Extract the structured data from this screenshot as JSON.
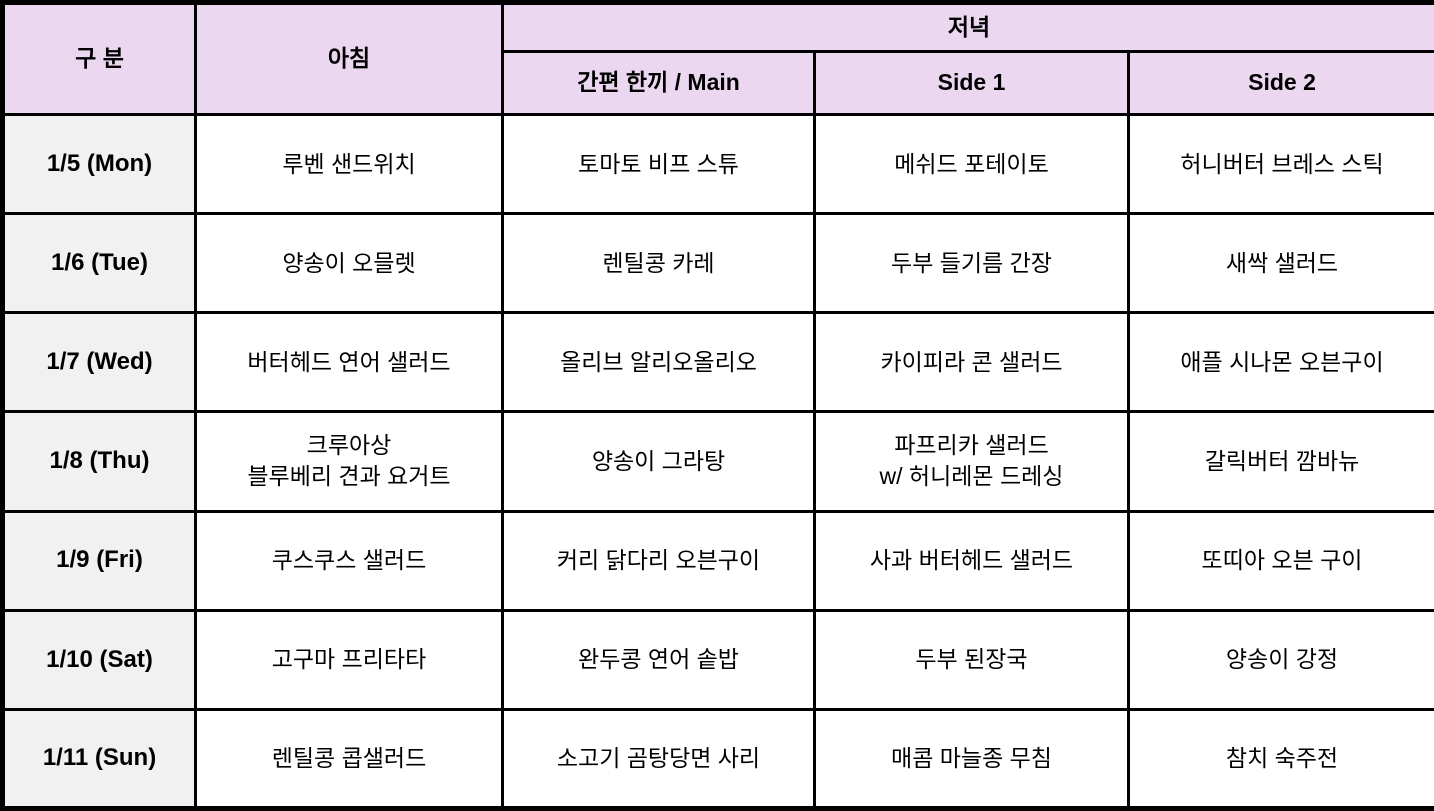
{
  "table": {
    "headers": {
      "category": "구 분",
      "breakfast": "아침",
      "dinner": "저녁",
      "dinner_main": "간편 한끼 / Main",
      "dinner_side1": "Side 1",
      "dinner_side2": "Side 2"
    },
    "rows": [
      {
        "day": "1/5 (Mon)",
        "breakfast": "루벤 샌드위치",
        "main": "토마토 비프 스튜",
        "side1": "메쉬드 포테이토",
        "side2": "허니버터 브레스 스틱"
      },
      {
        "day": "1/6 (Tue)",
        "breakfast": "양송이 오믈렛",
        "main": "렌틸콩 카레",
        "side1": "두부 들기름 간장",
        "side2": "새싹 샐러드"
      },
      {
        "day": "1/7 (Wed)",
        "breakfast": "버터헤드 연어 샐러드",
        "main": "올리브 알리오올리오",
        "side1": "카이피라 콘 샐러드",
        "side2": "애플 시나몬 오븐구이"
      },
      {
        "day": "1/8 (Thu)",
        "breakfast": "크루아상\n블루베리 견과 요거트",
        "main": "양송이 그라탕",
        "side1": "파프리카 샐러드\nw/ 허니레몬 드레싱",
        "side2": "갈릭버터 깜바뉴"
      },
      {
        "day": "1/9 (Fri)",
        "breakfast": "쿠스쿠스 샐러드",
        "main": "커리 닭다리 오븐구이",
        "side1": "사과 버터헤드 샐러드",
        "side2": "또띠아 오븐 구이"
      },
      {
        "day": "1/10 (Sat)",
        "breakfast": "고구마 프리타타",
        "main": "완두콩 연어 솥밥",
        "side1": "두부 된장국",
        "side2": "양송이 강정"
      },
      {
        "day": "1/11 (Sun)",
        "breakfast": "렌틸콩 콥샐러드",
        "main": "소고기 곰탕당면 사리",
        "side1": "매콤 마늘종 무침",
        "side2": "참치 숙주전"
      }
    ]
  },
  "colors": {
    "header_bg": "#ecd7f0",
    "day_column_bg": "#f1f1f1",
    "border": "#000000",
    "cell_bg": "#ffffff"
  }
}
